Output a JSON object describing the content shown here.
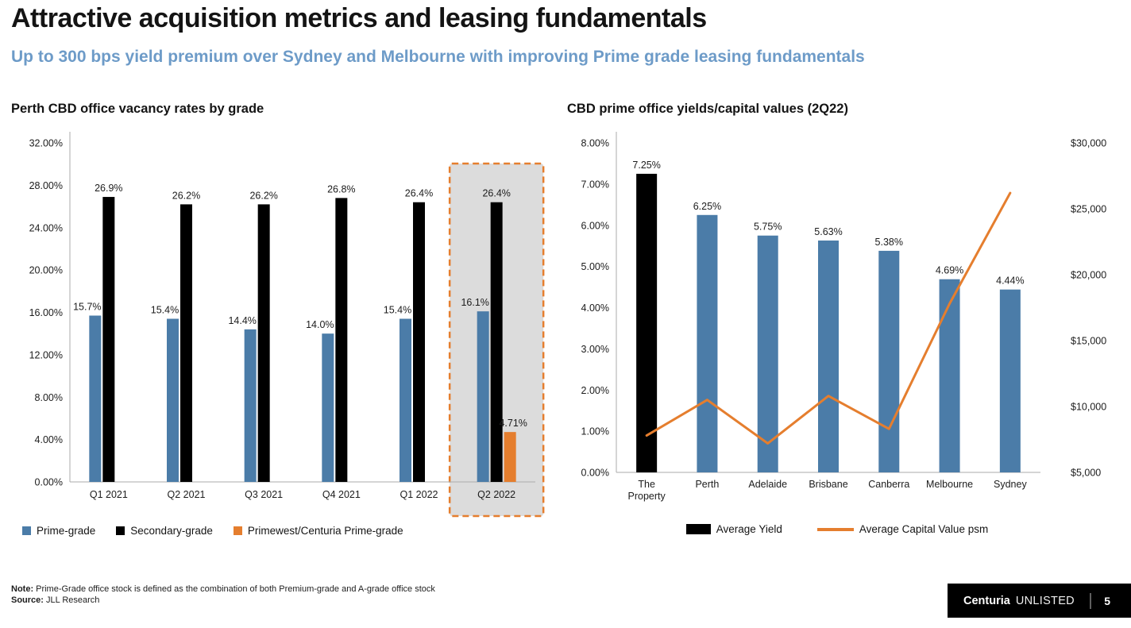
{
  "slide": {
    "title": "Attractive acquisition metrics and leasing fundamentals",
    "subtitle": "Up to 300 bps yield premium over Sydney and Melbourne with improving Prime grade leasing fundamentals"
  },
  "colors": {
    "blue": "#4B7CA8",
    "black": "#000000",
    "orange": "#E57E2E",
    "subtitle_blue": "#6D9BC8",
    "highlight_fill": "#DCDCDC",
    "axis_gray": "#ABABAB"
  },
  "chart_data": [
    {
      "type": "bar",
      "title": "Perth CBD office vacancy rates by grade",
      "categories": [
        "Q1 2021",
        "Q2 2021",
        "Q3 2021",
        "Q4 2021",
        "Q1 2022",
        "Q2 2022"
      ],
      "series": [
        {
          "name": "Prime-grade",
          "color": "blue",
          "values": [
            15.7,
            15.4,
            14.4,
            14.0,
            15.4,
            16.1
          ],
          "labels": [
            "15.7%",
            "15.4%",
            "14.4%",
            "14.0%",
            "15.4%",
            "16.1%"
          ]
        },
        {
          "name": "Secondary-grade",
          "color": "black",
          "values": [
            26.9,
            26.2,
            26.2,
            26.8,
            26.4,
            26.4
          ],
          "labels": [
            "26.9%",
            "26.2%",
            "26.2%",
            "26.8%",
            "26.4%",
            "26.4%"
          ]
        },
        {
          "name": "Primewest/Centuria Prime-grade",
          "color": "orange",
          "values": [
            null,
            null,
            null,
            null,
            null,
            4.71
          ],
          "labels": [
            null,
            null,
            null,
            null,
            null,
            "4.71%"
          ]
        }
      ],
      "y_axis": {
        "min": 0,
        "max": 32,
        "step": 4,
        "tick_labels": [
          "0.00%",
          "4.00%",
          "8.00%",
          "12.00%",
          "16.00%",
          "20.00%",
          "24.00%",
          "28.00%",
          "32.00%"
        ]
      },
      "highlight_category": "Q2 2022",
      "grid": false,
      "legend_position": "bottom"
    },
    {
      "type": "bar+line",
      "title": "CBD prime office yields/capital values (2Q22)",
      "categories": [
        "The Property",
        "Perth",
        "Adelaide",
        "Brisbane",
        "Canberra",
        "Melbourne",
        "Sydney"
      ],
      "bar_series": {
        "name": "Average Yield",
        "values": [
          7.25,
          6.25,
          5.75,
          5.63,
          5.38,
          4.69,
          4.44
        ],
        "labels": [
          "7.25%",
          "6.25%",
          "5.75%",
          "5.63%",
          "5.38%",
          "4.69%",
          "4.44%"
        ],
        "bar_colors": [
          "black",
          "blue",
          "blue",
          "blue",
          "blue",
          "blue",
          "blue"
        ]
      },
      "line_series": {
        "name": "Average Capital Value psm",
        "color": "orange",
        "values": [
          7800,
          10500,
          7200,
          10800,
          8300,
          17800,
          26200
        ]
      },
      "y_axis_left": {
        "min": 0,
        "max": 8,
        "step": 1,
        "tick_labels": [
          "0.00%",
          "1.00%",
          "2.00%",
          "3.00%",
          "4.00%",
          "5.00%",
          "6.00%",
          "7.00%",
          "8.00%"
        ]
      },
      "y_axis_right": {
        "min": 5000,
        "max": 30000,
        "step": 5000,
        "tick_labels": [
          "$5,000",
          "$10,000",
          "$15,000",
          "$20,000",
          "$25,000",
          "$30,000"
        ]
      },
      "grid": false,
      "legend_position": "bottom"
    }
  ],
  "footnote": {
    "note_label": "Note:",
    "note_text": "Prime-Grade office stock is defined as the combination of both Premium-grade and A-grade office stock",
    "source_label": "Source:",
    "source_text": "JLL Research"
  },
  "brand_bar": {
    "brand": "Centuria",
    "suffix": "UNLISTED",
    "page": "5"
  }
}
